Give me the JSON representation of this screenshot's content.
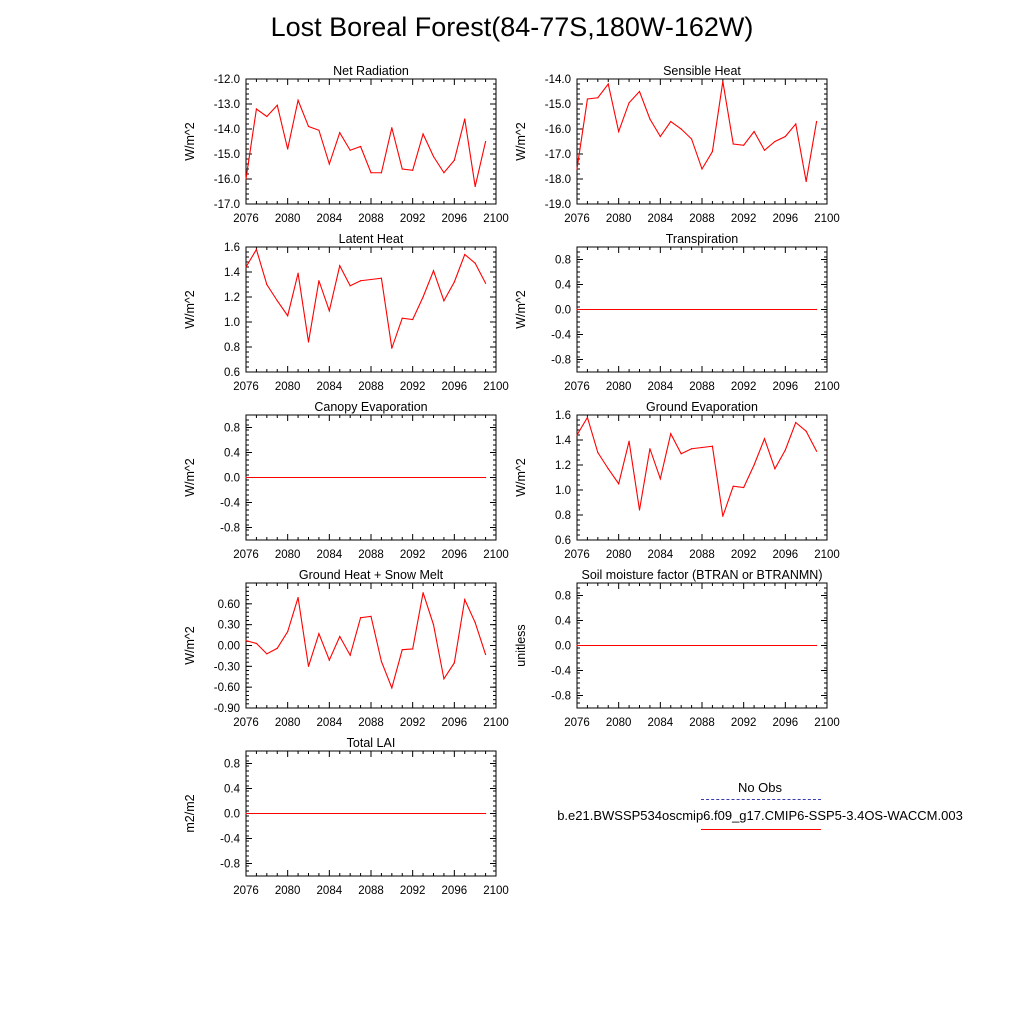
{
  "title": "Lost Boreal Forest(84-77S,180W-162W)",
  "legend": {
    "obs_label": "No Obs",
    "model_label": "b.e21.BWSSP534oscmip6.f09_g17.CMIP6-SSP5-3.4OS-WACCM.003",
    "obs_color": "#3b3bb0",
    "model_color": "#ff0000"
  },
  "chart_data": [
    {
      "type": "line",
      "title": "Net Radiation",
      "ylabel": "W/m^2",
      "xlim": [
        2076,
        2100
      ],
      "ylim": [
        -17.0,
        -12.0
      ],
      "xticks": [
        "2076",
        "2080",
        "2084",
        "2088",
        "2092",
        "2096",
        "2100"
      ],
      "yticks": [
        "-12.0",
        "-13.0",
        "-14.0",
        "-15.0",
        "-16.0",
        "-17.0"
      ],
      "ytick_values": [
        -12.0,
        -13.0,
        -14.0,
        -15.0,
        -16.0,
        -17.0
      ],
      "x": [
        2076,
        2077,
        2078,
        2079,
        2080,
        2081,
        2082,
        2083,
        2084,
        2085,
        2086,
        2087,
        2088,
        2089,
        2090,
        2091,
        2092,
        2093,
        2094,
        2095,
        2096,
        2097,
        2098,
        2099
      ],
      "series": [
        {
          "name": "model",
          "color": "#ff0000",
          "values": [
            -16.0,
            -13.2,
            -13.5,
            -13.05,
            -14.8,
            -12.85,
            -13.9,
            -14.05,
            -15.4,
            -14.15,
            -14.85,
            -14.7,
            -15.75,
            -15.75,
            -13.95,
            -15.6,
            -15.65,
            -14.2,
            -15.1,
            -15.75,
            -15.25,
            -13.6,
            -16.3,
            -14.5
          ]
        }
      ]
    },
    {
      "type": "line",
      "title": "Sensible Heat",
      "ylabel": "W/m^2",
      "xlim": [
        2076,
        2100
      ],
      "ylim": [
        -19.0,
        -14.0
      ],
      "xticks": [
        "2076",
        "2080",
        "2084",
        "2088",
        "2092",
        "2096",
        "2100"
      ],
      "yticks": [
        "-14.0",
        "-15.0",
        "-16.0",
        "-17.0",
        "-18.0",
        "-19.0"
      ],
      "ytick_values": [
        -14.0,
        -15.0,
        -16.0,
        -17.0,
        -18.0,
        -19.0
      ],
      "x": [
        2076,
        2077,
        2078,
        2079,
        2080,
        2081,
        2082,
        2083,
        2084,
        2085,
        2086,
        2087,
        2088,
        2089,
        2090,
        2091,
        2092,
        2093,
        2094,
        2095,
        2096,
        2097,
        2098,
        2099
      ],
      "series": [
        {
          "name": "model",
          "color": "#ff0000",
          "values": [
            -17.6,
            -14.8,
            -14.75,
            -14.2,
            -16.1,
            -14.95,
            -14.5,
            -15.6,
            -16.3,
            -15.7,
            -16.0,
            -16.4,
            -17.6,
            -16.9,
            -14.1,
            -16.6,
            -16.65,
            -16.1,
            -16.85,
            -16.5,
            -16.3,
            -15.8,
            -18.1,
            -15.7
          ]
        }
      ]
    },
    {
      "type": "line",
      "title": "Latent Heat",
      "ylabel": "W/m^2",
      "xlim": [
        2076,
        2100
      ],
      "ylim": [
        0.6,
        1.6
      ],
      "xticks": [
        "2076",
        "2080",
        "2084",
        "2088",
        "2092",
        "2096",
        "2100"
      ],
      "yticks": [
        "1.6",
        "1.4",
        "1.2",
        "1.0",
        "0.8",
        "0.6"
      ],
      "ytick_values": [
        1.6,
        1.4,
        1.2,
        1.0,
        0.8,
        0.6
      ],
      "x": [
        2076,
        2077,
        2078,
        2079,
        2080,
        2081,
        2082,
        2083,
        2084,
        2085,
        2086,
        2087,
        2088,
        2089,
        2090,
        2091,
        2092,
        2093,
        2094,
        2095,
        2096,
        2097,
        2098,
        2099
      ],
      "series": [
        {
          "name": "model",
          "color": "#ff0000",
          "values": [
            1.44,
            1.58,
            1.3,
            1.17,
            1.05,
            1.39,
            0.84,
            1.33,
            1.09,
            1.45,
            1.29,
            1.33,
            1.34,
            1.35,
            0.79,
            1.03,
            1.02,
            1.2,
            1.41,
            1.17,
            1.32,
            1.54,
            1.47,
            1.31
          ]
        }
      ]
    },
    {
      "type": "line",
      "title": "Transpiration",
      "ylabel": "W/m^2",
      "xlim": [
        2076,
        2100
      ],
      "ylim": [
        -1.0,
        1.0
      ],
      "xticks": [
        "2076",
        "2080",
        "2084",
        "2088",
        "2092",
        "2096",
        "2100"
      ],
      "yticks": [
        "0.8",
        "0.4",
        "0.0",
        "-0.4",
        "-0.8"
      ],
      "ytick_values": [
        0.8,
        0.4,
        0.0,
        -0.4,
        -0.8
      ],
      "x": [
        2076,
        2099
      ],
      "series": [
        {
          "name": "model",
          "color": "#ff0000",
          "values": [
            0.0,
            0.0
          ]
        }
      ]
    },
    {
      "type": "line",
      "title": "Canopy Evaporation",
      "ylabel": "W/m^2",
      "xlim": [
        2076,
        2100
      ],
      "ylim": [
        -1.0,
        1.0
      ],
      "xticks": [
        "2076",
        "2080",
        "2084",
        "2088",
        "2092",
        "2096",
        "2100"
      ],
      "yticks": [
        "0.8",
        "0.4",
        "0.0",
        "-0.4",
        "-0.8"
      ],
      "ytick_values": [
        0.8,
        0.4,
        0.0,
        -0.4,
        -0.8
      ],
      "x": [
        2076,
        2099
      ],
      "series": [
        {
          "name": "model",
          "color": "#ff0000",
          "values": [
            0.0,
            0.0
          ]
        }
      ]
    },
    {
      "type": "line",
      "title": "Ground Evaporation",
      "ylabel": "W/m^2",
      "xlim": [
        2076,
        2100
      ],
      "ylim": [
        0.6,
        1.6
      ],
      "xticks": [
        "2076",
        "2080",
        "2084",
        "2088",
        "2092",
        "2096",
        "2100"
      ],
      "yticks": [
        "1.6",
        "1.4",
        "1.2",
        "1.0",
        "0.8",
        "0.6"
      ],
      "ytick_values": [
        1.6,
        1.4,
        1.2,
        1.0,
        0.8,
        0.6
      ],
      "x": [
        2076,
        2077,
        2078,
        2079,
        2080,
        2081,
        2082,
        2083,
        2084,
        2085,
        2086,
        2087,
        2088,
        2089,
        2090,
        2091,
        2092,
        2093,
        2094,
        2095,
        2096,
        2097,
        2098,
        2099
      ],
      "series": [
        {
          "name": "model",
          "color": "#ff0000",
          "values": [
            1.44,
            1.58,
            1.3,
            1.17,
            1.05,
            1.39,
            0.84,
            1.33,
            1.09,
            1.45,
            1.29,
            1.33,
            1.34,
            1.35,
            0.79,
            1.03,
            1.02,
            1.2,
            1.41,
            1.17,
            1.32,
            1.54,
            1.47,
            1.31
          ]
        }
      ]
    },
    {
      "type": "line",
      "title": "Ground Heat + Snow Melt",
      "ylabel": "W/m^2",
      "xlim": [
        2076,
        2100
      ],
      "ylim": [
        -0.9,
        0.9
      ],
      "xticks": [
        "2076",
        "2080",
        "2084",
        "2088",
        "2092",
        "2096",
        "2100"
      ],
      "yticks": [
        "0.60",
        "0.30",
        "0.00",
        "-0.30",
        "-0.60",
        "-0.90"
      ],
      "ytick_values": [
        0.6,
        0.3,
        0.0,
        -0.3,
        -0.6,
        -0.9
      ],
      "x": [
        2076,
        2077,
        2078,
        2079,
        2080,
        2081,
        2082,
        2083,
        2084,
        2085,
        2086,
        2087,
        2088,
        2089,
        2090,
        2091,
        2092,
        2093,
        2094,
        2095,
        2096,
        2097,
        2098,
        2099
      ],
      "series": [
        {
          "name": "model",
          "color": "#ff0000",
          "values": [
            0.07,
            0.03,
            -0.12,
            -0.04,
            0.2,
            0.69,
            -0.3,
            0.17,
            -0.21,
            0.13,
            -0.14,
            0.4,
            0.42,
            -0.23,
            -0.61,
            -0.06,
            -0.05,
            0.76,
            0.3,
            -0.48,
            -0.25,
            0.66,
            0.33,
            -0.13
          ]
        }
      ]
    },
    {
      "type": "line",
      "title": "Soil moisture factor (BTRAN or BTRANMN)",
      "ylabel": "unitless",
      "xlim": [
        2076,
        2100
      ],
      "ylim": [
        -1.0,
        1.0
      ],
      "xticks": [
        "2076",
        "2080",
        "2084",
        "2088",
        "2092",
        "2096",
        "2100"
      ],
      "yticks": [
        "0.8",
        "0.4",
        "0.0",
        "-0.4",
        "-0.8"
      ],
      "ytick_values": [
        0.8,
        0.4,
        0.0,
        -0.4,
        -0.8
      ],
      "x": [
        2076,
        2099
      ],
      "series": [
        {
          "name": "model",
          "color": "#ff0000",
          "values": [
            0.0,
            0.0
          ]
        }
      ]
    },
    {
      "type": "line",
      "title": "Total LAI",
      "ylabel": "m2/m2",
      "xlim": [
        2076,
        2100
      ],
      "ylim": [
        -1.0,
        1.0
      ],
      "xticks": [
        "2076",
        "2080",
        "2084",
        "2088",
        "2092",
        "2096",
        "2100"
      ],
      "yticks": [
        "0.8",
        "0.4",
        "0.0",
        "-0.4",
        "-0.8"
      ],
      "ytick_values": [
        0.8,
        0.4,
        0.0,
        -0.4,
        -0.8
      ],
      "x": [
        2076,
        2099
      ],
      "series": [
        {
          "name": "model",
          "color": "#ff0000",
          "values": [
            0.0,
            0.0
          ]
        }
      ]
    }
  ]
}
